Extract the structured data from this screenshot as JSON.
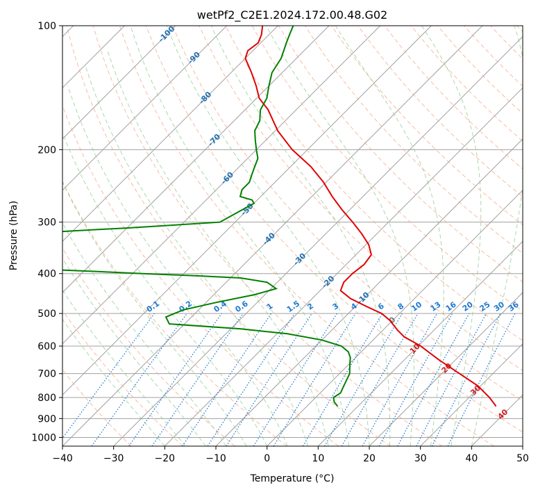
{
  "chart_data": {
    "type": "line",
    "title": "wetPf2_C2E1.2024.172.00.48.G02",
    "xlabel": "Temperature (°C)",
    "ylabel": "Pressure (hPa)",
    "xlim": [
      -40,
      50
    ],
    "ylim": [
      1050,
      100
    ],
    "y_scale": "log",
    "x_ticks": [
      "−40",
      "−30",
      "−20",
      "−10",
      "0",
      "10",
      "20",
      "30",
      "40",
      "50"
    ],
    "y_ticks": [
      "100",
      "200",
      "300",
      "400",
      "500",
      "600",
      "700",
      "800",
      "900",
      "1000"
    ],
    "grid": true,
    "colors": {
      "temperature": "#e00000",
      "dewpoint": "#008000",
      "isotherm": "#a0a0a0",
      "dry_adiabat": "#f4a582",
      "moist_adiabat": "#8fc98f",
      "mixing_ratio": "#1e78d2",
      "isotherm_label": "#1f6fb2",
      "warm_label": "#d42020"
    },
    "series": [
      {
        "role": "temperature",
        "pressure": [
          840,
          800,
          750,
          700,
          650,
          600,
          570,
          550,
          520,
          500,
          480,
          460,
          440,
          420,
          400,
          380,
          360,
          340,
          320,
          300,
          280,
          260,
          240,
          220,
          200,
          180,
          160,
          150,
          140,
          130,
          120,
          115,
          110,
          105,
          100
        ],
        "temperature": [
          37,
          34,
          29.5,
          23.5,
          17,
          10.5,
          5.5,
          3,
          -0.5,
          -3.5,
          -8,
          -12.5,
          -16,
          -17,
          -17,
          -16.5,
          -17,
          -19.5,
          -23,
          -27,
          -31.5,
          -36,
          -40.5,
          -46,
          -53,
          -59.5,
          -65.5,
          -69.5,
          -72.5,
          -76,
          -80,
          -81,
          -80.5,
          -81.5,
          -83
        ]
      },
      {
        "role": "dewpoint",
        "pressure": [
          840,
          820,
          810,
          800,
          780,
          760,
          740,
          720,
          700,
          680,
          660,
          640,
          620,
          600,
          580,
          560,
          545,
          530,
          510,
          500,
          490,
          470,
          450,
          435,
          420,
          410,
          405,
          400,
          395,
          390,
          385,
          320,
          315,
          310,
          300,
          290,
          280,
          270,
          265,
          260,
          250,
          240,
          230,
          220,
          210,
          200,
          190,
          180,
          170,
          165,
          160,
          150,
          145,
          140,
          130,
          120,
          110,
          105,
          100
        ],
        "dewpoint": [
          6,
          4.5,
          4,
          3.5,
          4,
          3.5,
          3,
          2.5,
          2,
          1,
          0,
          -1,
          -2.5,
          -5,
          -10,
          -18,
          -28,
          -43,
          -45,
          -44,
          -43,
          -38,
          -32,
          -29,
          -32,
          -38,
          -47,
          -58,
          -68,
          -79,
          -88,
          -88,
          -80,
          -70,
          -53,
          -52,
          -51,
          -50,
          -51,
          -54,
          -55,
          -55,
          -56,
          -57,
          -58,
          -60,
          -62,
          -64,
          -65,
          -66,
          -67,
          -68,
          -69,
          -70,
          -72,
          -73,
          -75,
          -76,
          -77
        ]
      }
    ],
    "isotherm_labels": [
      "-100",
      "-90",
      "-80",
      "-70",
      "-60",
      "-50",
      "-40",
      "-30",
      "-20",
      "-10"
    ],
    "isotherm_warm_labels": [
      "0",
      "10",
      "20",
      "30",
      "40"
    ],
    "mixing_ratio_labels": [
      "0.1",
      "0.2",
      "0.4",
      "0.6",
      "1",
      "1.5",
      "2",
      "3",
      "4",
      "6",
      "8",
      "10",
      "13",
      "16",
      "20",
      "25",
      "30",
      "36"
    ]
  }
}
